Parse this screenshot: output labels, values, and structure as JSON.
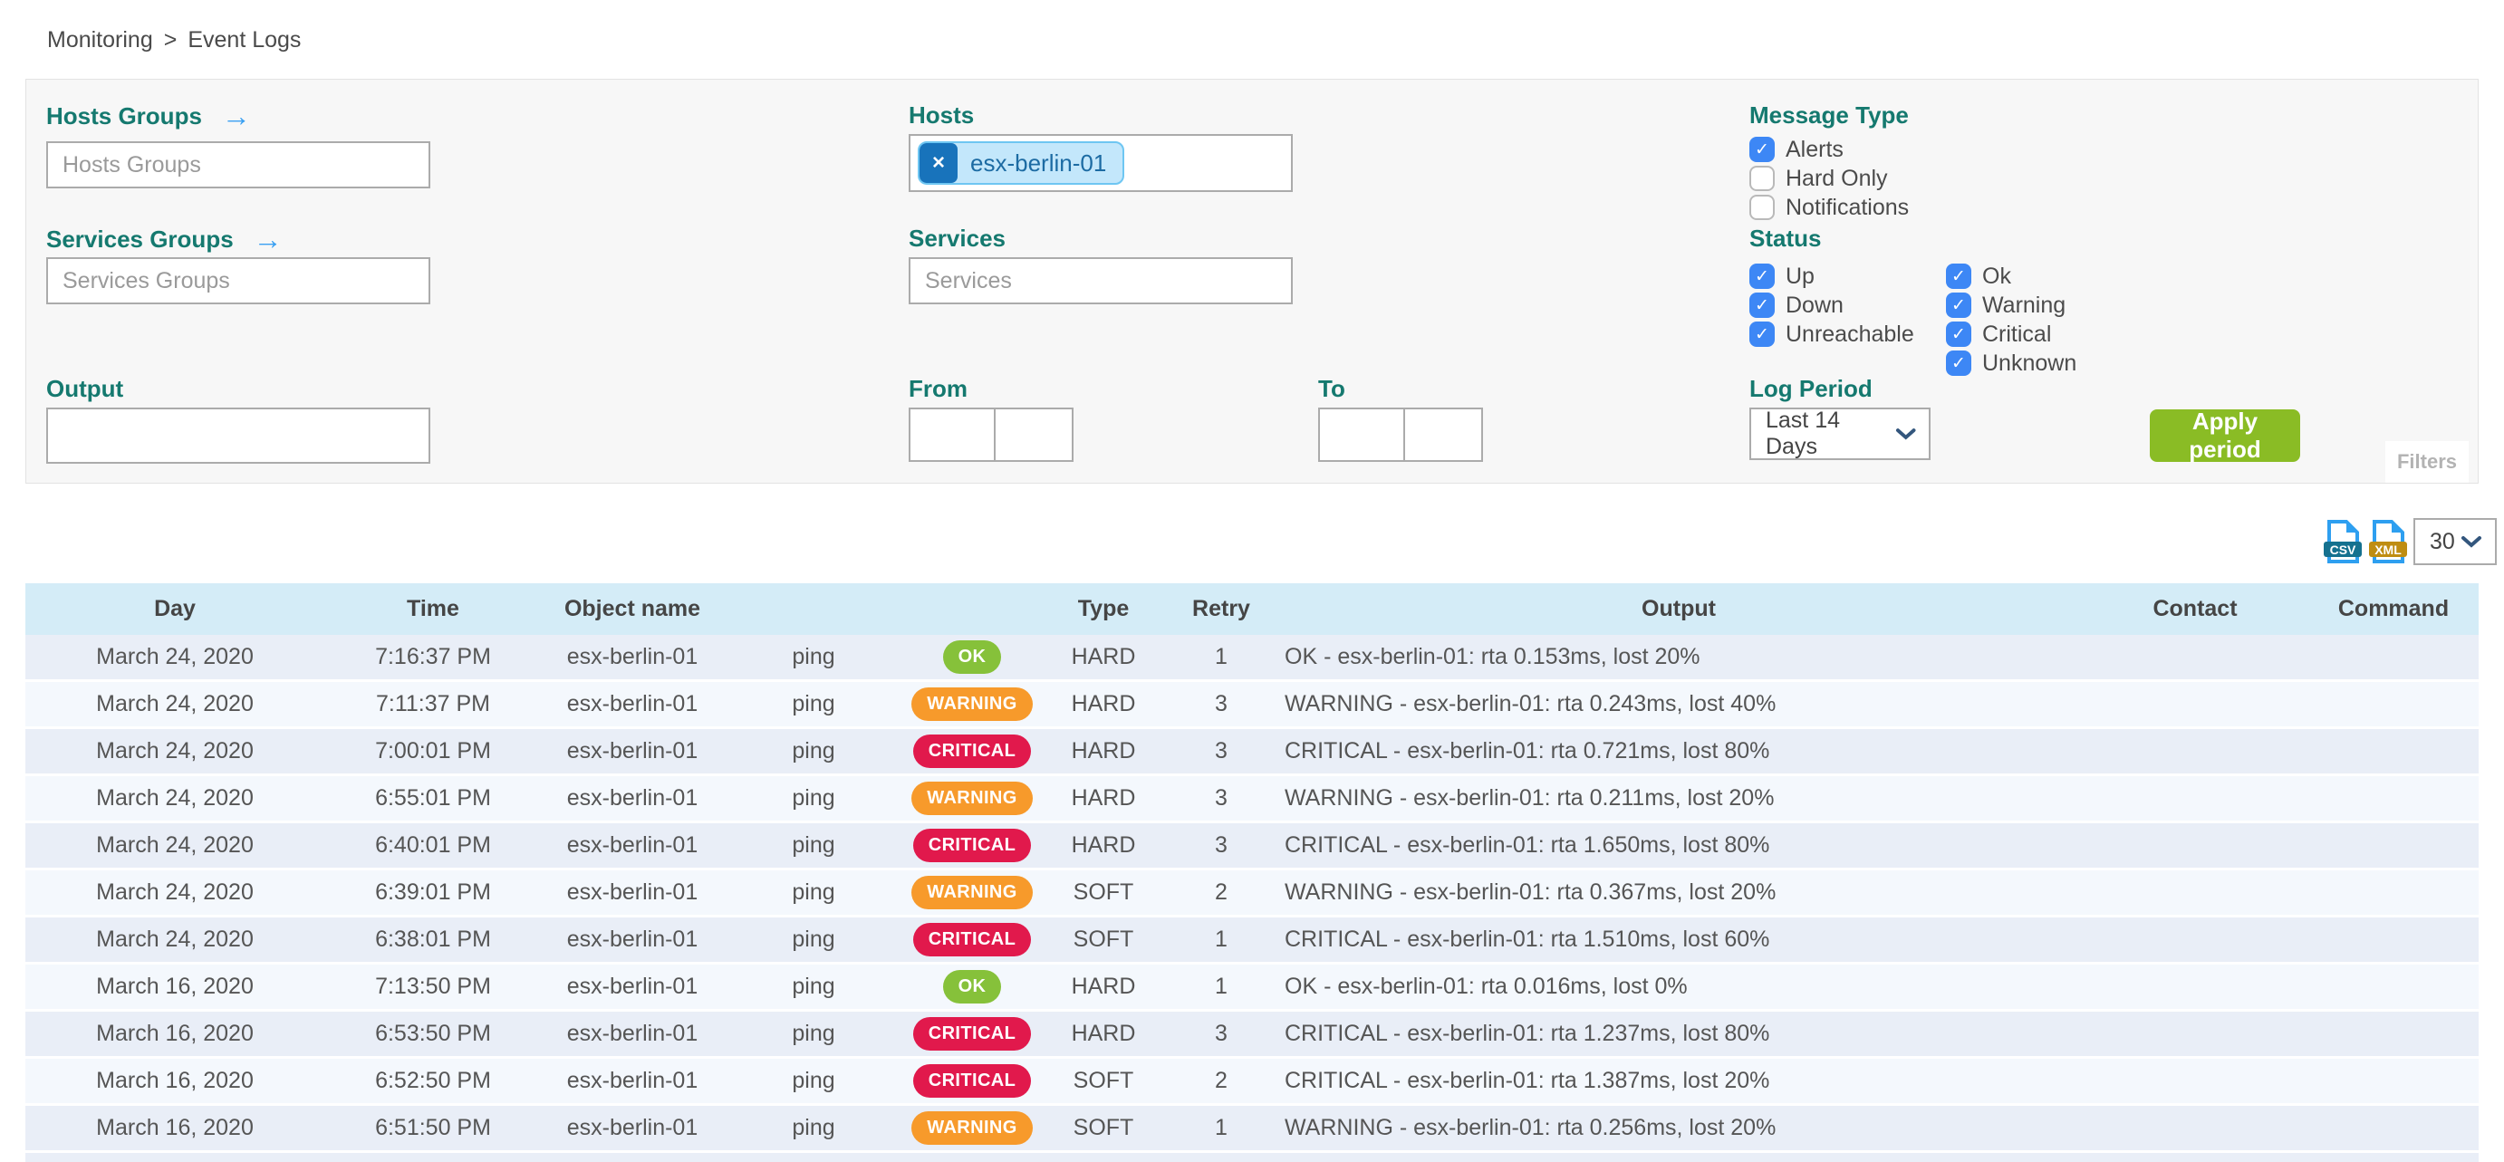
{
  "breadcrumb": {
    "items": [
      "Monitoring",
      "Event Logs"
    ],
    "separator": ">"
  },
  "filters": {
    "hosts_groups": {
      "label": "Hosts Groups",
      "placeholder": "Hosts Groups",
      "arrow": "→"
    },
    "services_groups": {
      "label": "Services Groups",
      "placeholder": "Services Groups",
      "arrow": "→"
    },
    "hosts": {
      "label": "Hosts",
      "chips": [
        {
          "text": "esx-berlin-01",
          "remove": "×"
        }
      ]
    },
    "services": {
      "label": "Services",
      "placeholder": "Services"
    },
    "message_type": {
      "label": "Message Type",
      "options": [
        {
          "label": "Alerts",
          "checked": true
        },
        {
          "label": "Hard Only",
          "checked": false
        },
        {
          "label": "Notifications",
          "checked": false
        }
      ]
    },
    "status": {
      "label": "Status",
      "col1": [
        {
          "label": "Up",
          "checked": true
        },
        {
          "label": "Down",
          "checked": true
        },
        {
          "label": "Unreachable",
          "checked": true
        }
      ],
      "col2": [
        {
          "label": "Ok",
          "checked": true
        },
        {
          "label": "Warning",
          "checked": true
        },
        {
          "label": "Critical",
          "checked": true
        },
        {
          "label": "Unknown",
          "checked": true
        }
      ]
    },
    "output": {
      "label": "Output",
      "value": ""
    },
    "from": {
      "label": "From",
      "date": "",
      "time": ""
    },
    "to": {
      "label": "To",
      "date": "",
      "time": ""
    },
    "log_period": {
      "label": "Log Period",
      "selected": "Last 14 Days"
    },
    "apply_button": "Apply period",
    "filters_tab": "Filters"
  },
  "toolbar": {
    "csv_icon_text": "CSV",
    "xml_icon_text": "XML",
    "page_size": "30"
  },
  "table": {
    "columns": [
      "Day",
      "Time",
      "Object name",
      "",
      "",
      "Type",
      "Retry",
      "Output",
      "Contact",
      "Command"
    ],
    "rows": [
      {
        "day": "March 24, 2020",
        "time": "7:16:37 PM",
        "object": "esx-berlin-01",
        "service": "ping",
        "status": "OK",
        "type": "HARD",
        "retry": "1",
        "output": "OK - esx-berlin-01: rta 0.153ms, lost 20%",
        "contact": "",
        "command": ""
      },
      {
        "day": "March 24, 2020",
        "time": "7:11:37 PM",
        "object": "esx-berlin-01",
        "service": "ping",
        "status": "WARNING",
        "type": "HARD",
        "retry": "3",
        "output": "WARNING - esx-berlin-01: rta 0.243ms, lost 40%",
        "contact": "",
        "command": ""
      },
      {
        "day": "March 24, 2020",
        "time": "7:00:01 PM",
        "object": "esx-berlin-01",
        "service": "ping",
        "status": "CRITICAL",
        "type": "HARD",
        "retry": "3",
        "output": "CRITICAL - esx-berlin-01: rta 0.721ms, lost 80%",
        "contact": "",
        "command": ""
      },
      {
        "day": "March 24, 2020",
        "time": "6:55:01 PM",
        "object": "esx-berlin-01",
        "service": "ping",
        "status": "WARNING",
        "type": "HARD",
        "retry": "3",
        "output": "WARNING - esx-berlin-01: rta 0.211ms, lost 20%",
        "contact": "",
        "command": ""
      },
      {
        "day": "March 24, 2020",
        "time": "6:40:01 PM",
        "object": "esx-berlin-01",
        "service": "ping",
        "status": "CRITICAL",
        "type": "HARD",
        "retry": "3",
        "output": "CRITICAL - esx-berlin-01: rta 1.650ms, lost 80%",
        "contact": "",
        "command": ""
      },
      {
        "day": "March 24, 2020",
        "time": "6:39:01 PM",
        "object": "esx-berlin-01",
        "service": "ping",
        "status": "WARNING",
        "type": "SOFT",
        "retry": "2",
        "output": "WARNING - esx-berlin-01: rta 0.367ms, lost 20%",
        "contact": "",
        "command": ""
      },
      {
        "day": "March 24, 2020",
        "time": "6:38:01 PM",
        "object": "esx-berlin-01",
        "service": "ping",
        "status": "CRITICAL",
        "type": "SOFT",
        "retry": "1",
        "output": "CRITICAL - esx-berlin-01: rta 1.510ms, lost 60%",
        "contact": "",
        "command": ""
      },
      {
        "day": "March 16, 2020",
        "time": "7:13:50 PM",
        "object": "esx-berlin-01",
        "service": "ping",
        "status": "OK",
        "type": "HARD",
        "retry": "1",
        "output": "OK - esx-berlin-01: rta 0.016ms, lost 0%",
        "contact": "",
        "command": ""
      },
      {
        "day": "March 16, 2020",
        "time": "6:53:50 PM",
        "object": "esx-berlin-01",
        "service": "ping",
        "status": "CRITICAL",
        "type": "HARD",
        "retry": "3",
        "output": "CRITICAL - esx-berlin-01: rta 1.237ms, lost 80%",
        "contact": "",
        "command": ""
      },
      {
        "day": "March 16, 2020",
        "time": "6:52:50 PM",
        "object": "esx-berlin-01",
        "service": "ping",
        "status": "CRITICAL",
        "type": "SOFT",
        "retry": "2",
        "output": "CRITICAL - esx-berlin-01: rta 1.387ms, lost 20%",
        "contact": "",
        "command": ""
      },
      {
        "day": "March 16, 2020",
        "time": "6:51:50 PM",
        "object": "esx-berlin-01",
        "service": "ping",
        "status": "WARNING",
        "type": "SOFT",
        "retry": "1",
        "output": "WARNING - esx-berlin-01: rta 0.256ms, lost 20%",
        "contact": "",
        "command": ""
      }
    ]
  },
  "colors": {
    "label_teal": "#15796f",
    "checkbox_blue": "#3d87f5",
    "apply_green": "#8abc25",
    "badge_ok": "#86c13a",
    "badge_warning": "#f79a2b",
    "badge_critical": "#e1194c",
    "table_header_bg": "#d4ecf7",
    "row_odd": "#f4f8fd",
    "row_even": "#e9eef7",
    "chip_bg": "#c3e7fb",
    "chip_remove_bg": "#1873bb"
  }
}
